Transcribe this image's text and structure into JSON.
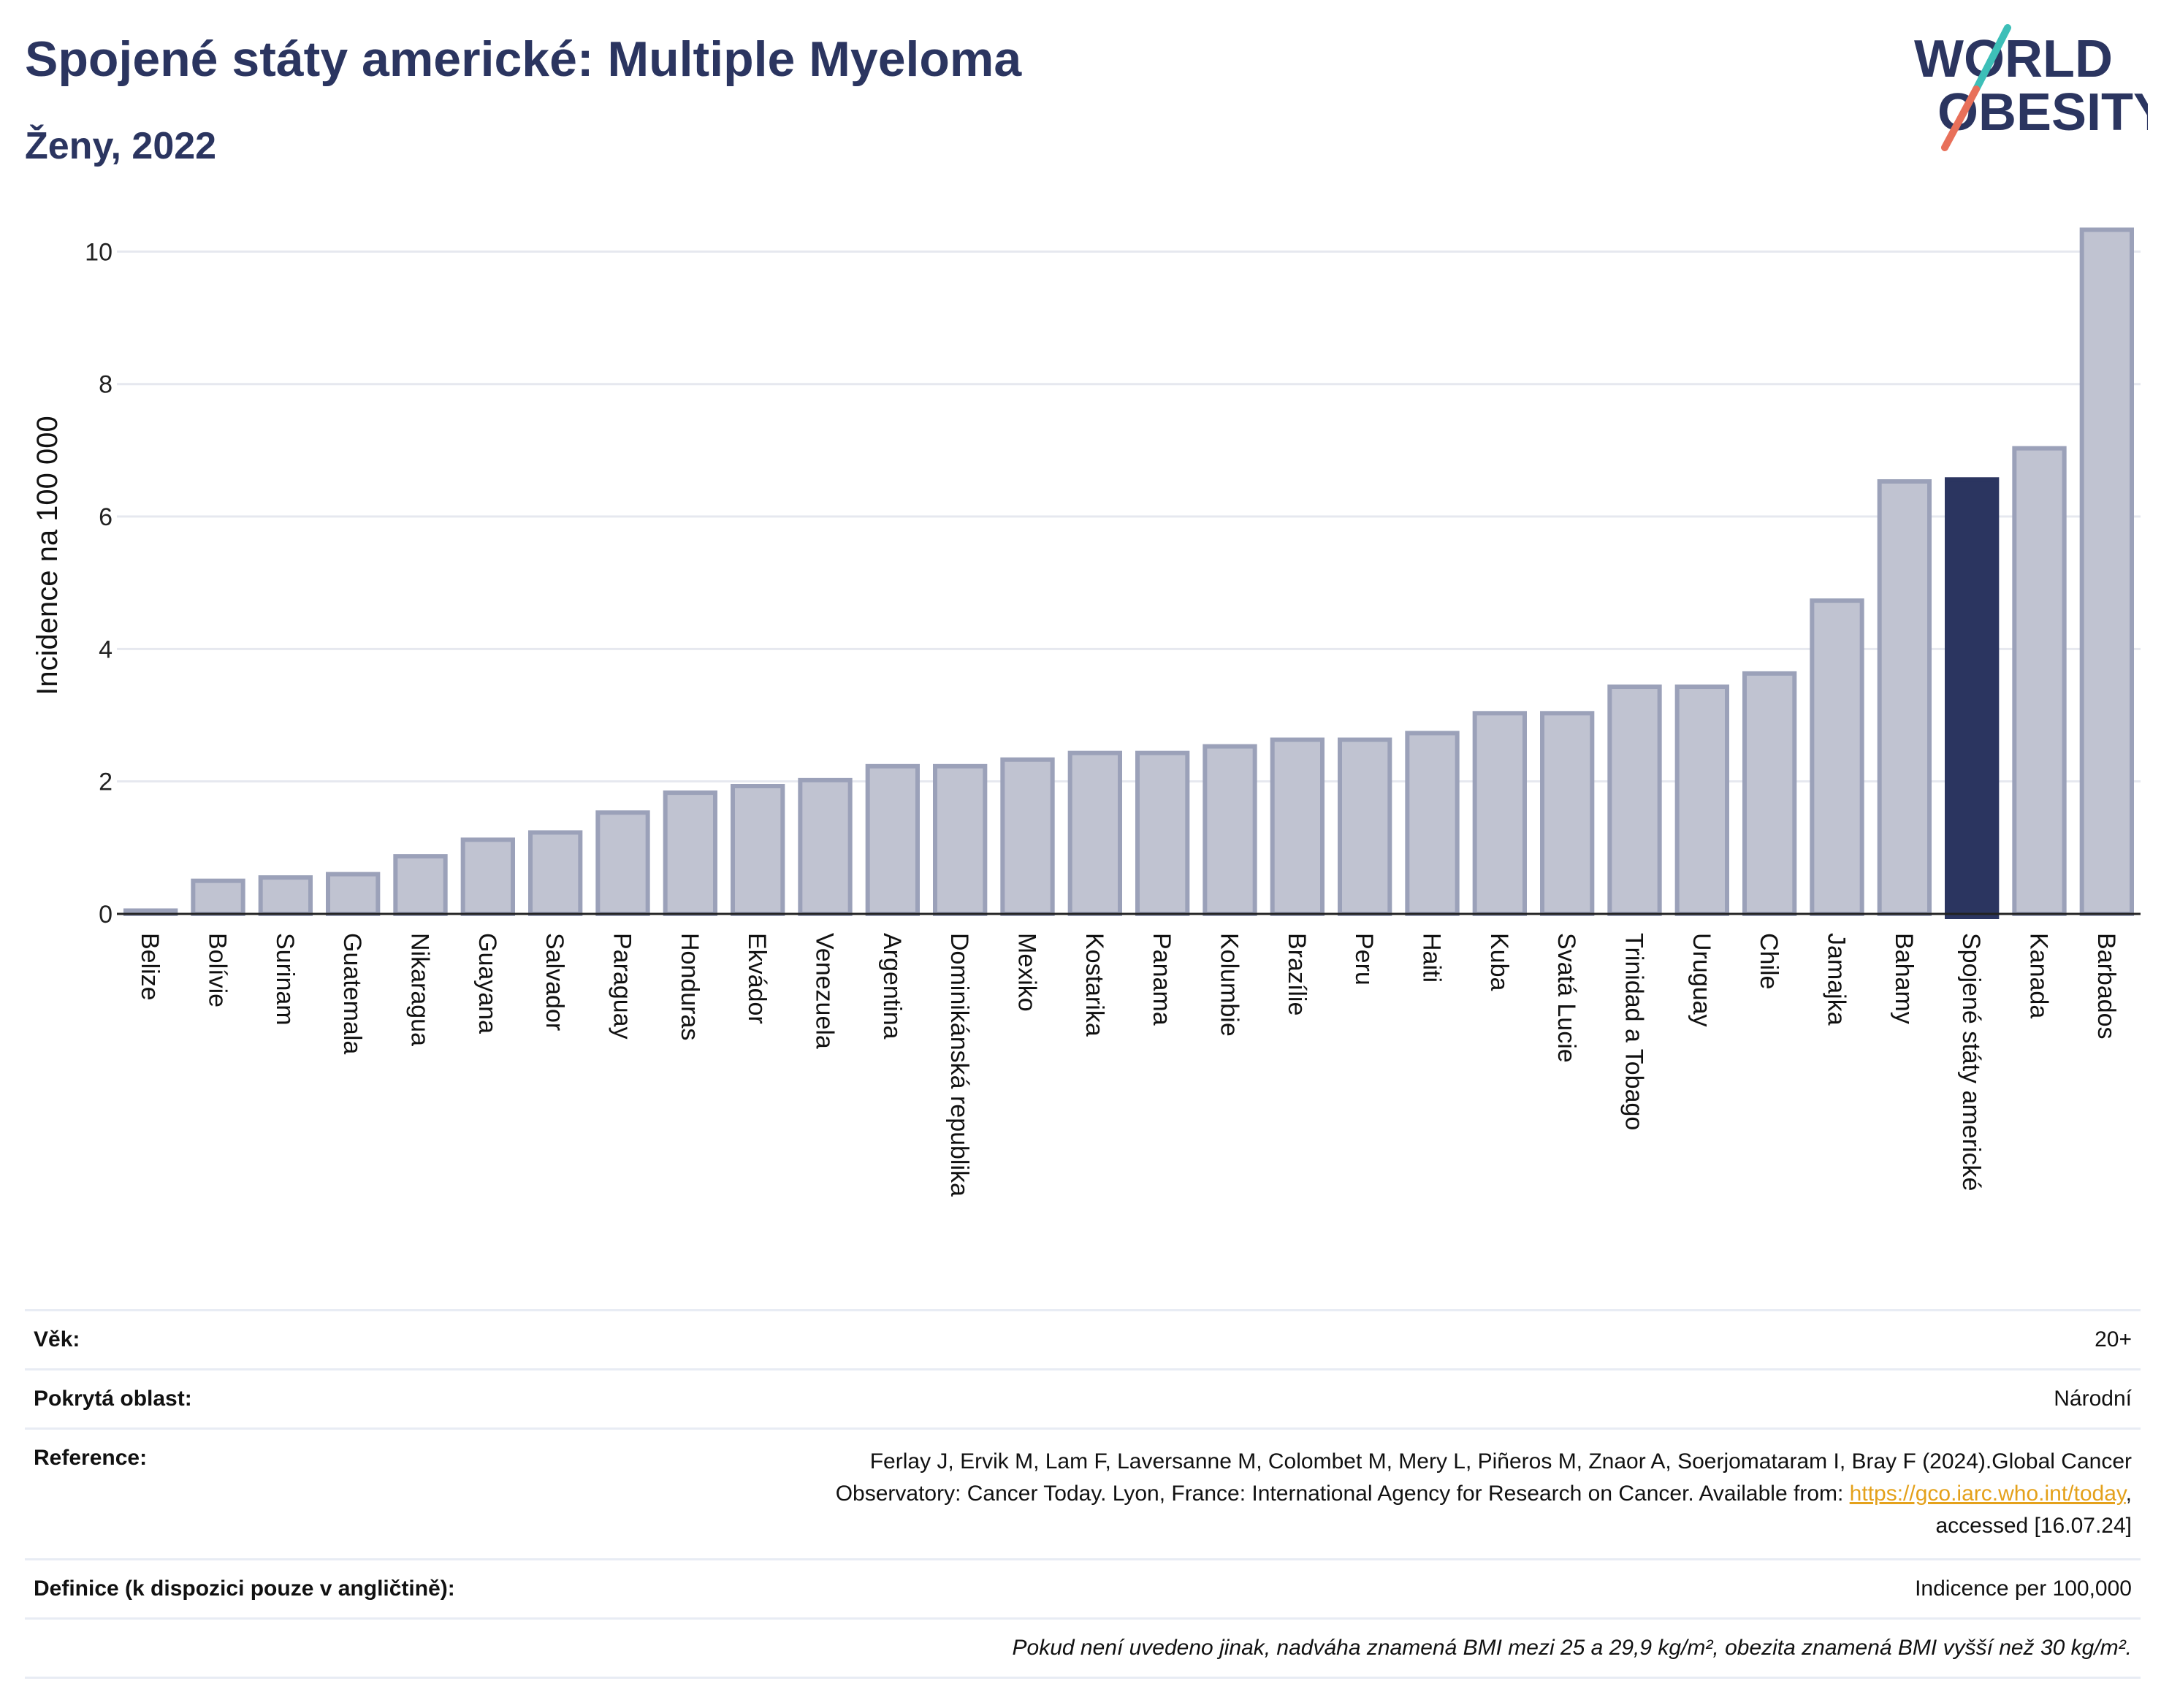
{
  "header": {
    "title": "Spojené státy americké: Multiple Myeloma",
    "subtitle": "Ženy, 2022"
  },
  "logo": {
    "line1": "WORLD",
    "line2": "OBESITY",
    "slash_colors": [
      "#3dbfb8",
      "#e8705a"
    ],
    "text_color": "#2b3560"
  },
  "colors": {
    "bar": "#c0c3d1",
    "bar_border": "#9ba1b9",
    "highlight": "#2b3560",
    "grid": "#e6e8ef",
    "axis": "#222222"
  },
  "chart_data": {
    "type": "bar",
    "ylabel": "Incidence na 100 000",
    "ylim": [
      0,
      10.6
    ],
    "yticks": [
      0,
      2,
      4,
      6,
      8,
      10
    ],
    "grid": true,
    "highlight": "Spojené státy americké",
    "categories": [
      "Belize",
      "Bolívie",
      "Surinam",
      "Guatemala",
      "Nikaragua",
      "Guayana",
      "Salvador",
      "Paraguay",
      "Honduras",
      "Ekvádor",
      "Venezuela",
      "Argentina",
      "Dominikánská republika",
      "Mexiko",
      "Kostarika",
      "Panama",
      "Kolumbie",
      "Brazílie",
      "Peru",
      "Haiti",
      "Kuba",
      "Svatá Lucie",
      "Trinidad a Tobago",
      "Uruguay",
      "Chile",
      "Jamajka",
      "Bahamy",
      "Spojené státy americké",
      "Kanada",
      "Barbados"
    ],
    "values": [
      0.05,
      0.5,
      0.55,
      0.6,
      0.87,
      1.12,
      1.23,
      1.53,
      1.83,
      1.93,
      2.02,
      2.23,
      2.23,
      2.33,
      2.43,
      2.43,
      2.53,
      2.63,
      2.63,
      2.73,
      3.03,
      3.03,
      3.43,
      3.43,
      3.63,
      4.73,
      6.53,
      6.56,
      7.03,
      10.33
    ]
  },
  "meta": [
    {
      "key": "Věk:",
      "value": "20+"
    },
    {
      "key": "Pokrytá oblast:",
      "value": "Národní"
    },
    {
      "key": "Reference:",
      "ref_line1": "Ferlay J, Ervik M, Lam F, Laversanne M, Colombet M, Mery L, Piñeros M, Znaor A, Soerjomataram I, Bray F (2024).Global Cancer",
      "ref_line2a": "Observatory: Cancer Today. Lyon, France: International Agency for Research on Cancer. Available from: ",
      "ref_link": "https://gco.iarc.who.int/today",
      "ref_line2b": ",",
      "ref_line3": "accessed [16.07.24]"
    },
    {
      "key": "Definice (k dispozici pouze v angličtině):",
      "value": "Indicence per 100,000"
    }
  ],
  "note": "Pokud není uvedeno jinak, nadváha znamená BMI mezi 25 a 29,9 kg/m², obezita znamená BMI vyšší než 30 kg/m²."
}
